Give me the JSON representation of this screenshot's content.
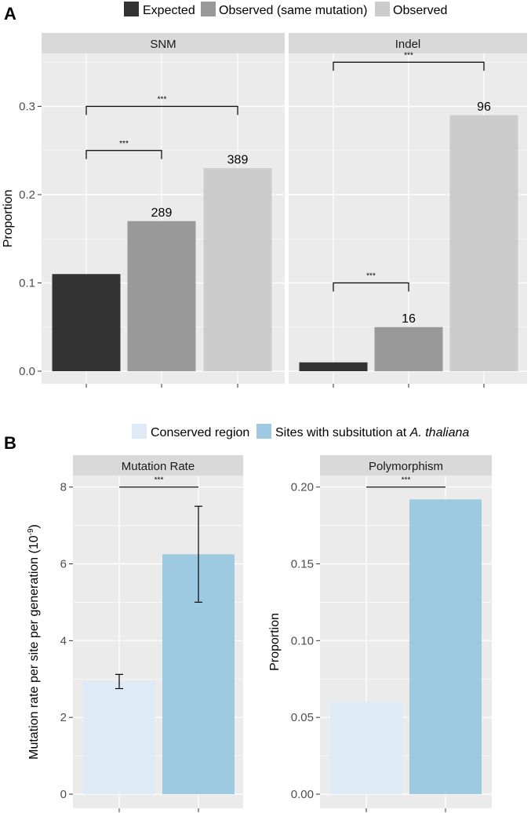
{
  "panel_a": {
    "letter": "A",
    "legend": [
      {
        "label": "Expected",
        "color": "#333333"
      },
      {
        "label": "Observed (same mutation)",
        "color": "#999999"
      },
      {
        "label": "Observed",
        "color": "#cccccc"
      }
    ]
  },
  "panel_b": {
    "letter": "B",
    "legend": [
      {
        "label": "Conserved region",
        "color": "#deebf7"
      },
      {
        "label": "Sites with subsitution at",
        "italic": "A. thaliana",
        "color": "#9ecae1"
      }
    ]
  },
  "chart_data": [
    {
      "type": "bar",
      "panel": "A",
      "title": "SNM",
      "ylabel": "Proportion",
      "xlabel": "",
      "ylim": [
        0,
        0.36
      ],
      "yticks": [
        0.0,
        0.1,
        0.2,
        0.3
      ],
      "ytick_labels": [
        "0.0",
        "0.1",
        "0.2",
        "0.3"
      ],
      "categories": [
        "Expected",
        "Observed (same mutation)",
        "Observed"
      ],
      "values": [
        0.11,
        0.17,
        0.23
      ],
      "colors": [
        "#333333",
        "#999999",
        "#cccccc"
      ],
      "bar_labels": [
        "",
        "289",
        "389"
      ],
      "brackets": [
        {
          "from": 0,
          "to": 1,
          "y": 0.25,
          "label": "***"
        },
        {
          "from": 0,
          "to": 2,
          "y": 0.3,
          "label": "***"
        }
      ]
    },
    {
      "type": "bar",
      "panel": "A",
      "title": "Indel",
      "ylim": [
        0,
        0.36
      ],
      "categories": [
        "Expected",
        "Observed (same mutation)",
        "Observed"
      ],
      "values": [
        0.01,
        0.05,
        0.29
      ],
      "colors": [
        "#333333",
        "#999999",
        "#cccccc"
      ],
      "bar_labels": [
        "",
        "16",
        "96"
      ],
      "brackets": [
        {
          "from": 0,
          "to": 1,
          "y": 0.1,
          "label": "***"
        },
        {
          "from": 0,
          "to": 2,
          "y": 0.35,
          "label": "***"
        }
      ]
    },
    {
      "type": "bar",
      "panel": "B",
      "title": "Mutation  Rate",
      "ylabel": "Mutation rate per site per generation (10",
      "ylabel_sup": "-9",
      "ylabel_end": ")",
      "ylim": [
        0,
        8.3
      ],
      "yticks": [
        0,
        2,
        4,
        6,
        8
      ],
      "ytick_labels": [
        "0",
        "2",
        "4",
        "6",
        "8"
      ],
      "categories": [
        "Conserved region",
        "Sites with subsitution at A. thaliana"
      ],
      "values": [
        2.95,
        6.25
      ],
      "error_low": [
        2.75,
        5.0
      ],
      "error_high": [
        3.12,
        7.5
      ],
      "colors": [
        "#deebf7",
        "#9ecae1"
      ],
      "brackets": [
        {
          "from": 0,
          "to": 1,
          "y": 8.0,
          "label": "***"
        }
      ]
    },
    {
      "type": "bar",
      "panel": "B",
      "title": "Polymorphism",
      "ylabel": "Proportion",
      "ylim": [
        0,
        0.2075
      ],
      "yticks": [
        0.0,
        0.05,
        0.1,
        0.15,
        0.2
      ],
      "ytick_labels": [
        "0.00",
        "0.05",
        "0.10",
        "0.15",
        "0.20"
      ],
      "categories": [
        "Conserved region",
        "Sites with subsitution at A. thaliana"
      ],
      "values": [
        0.06,
        0.192
      ],
      "colors": [
        "#deebf7",
        "#9ecae1"
      ],
      "brackets": [
        {
          "from": 0,
          "to": 1,
          "y": 0.2,
          "label": "***"
        }
      ]
    }
  ]
}
